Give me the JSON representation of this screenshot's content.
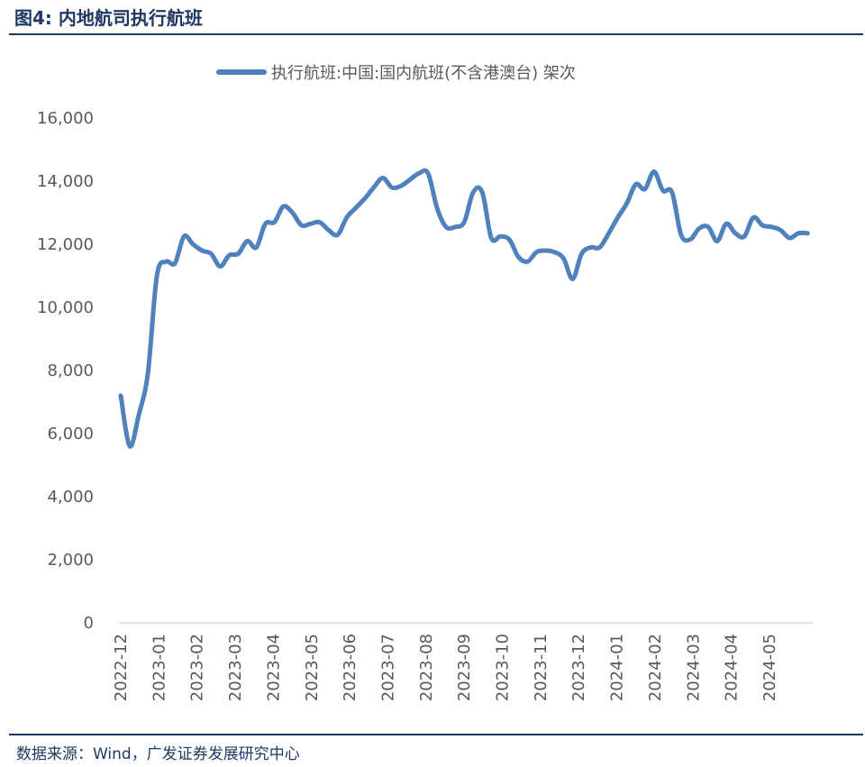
{
  "page": {
    "title": "图4:  内地航司执行航班",
    "source": "数据来源：Wind，广发证券发展研究中心"
  },
  "chart_data": {
    "type": "line",
    "title": "",
    "xlabel": "",
    "ylabel": "",
    "ylim": [
      0,
      16000
    ],
    "yticks": [
      0,
      2000,
      4000,
      6000,
      8000,
      10000,
      12000,
      14000,
      16000
    ],
    "ytick_labels": [
      "0",
      "2,000",
      "4,000",
      "6,000",
      "8,000",
      "10,000",
      "12,000",
      "14,000",
      "16,000"
    ],
    "xticks": [
      "2022-12",
      "2023-01",
      "2023-02",
      "2023-03",
      "2023-04",
      "2023-05",
      "2023-06",
      "2023-07",
      "2023-08",
      "2023-09",
      "2023-10",
      "2023-11",
      "2023-12",
      "2024-01",
      "2024-02",
      "2024-03",
      "2024-04",
      "2024-05"
    ],
    "grid": false,
    "legend_position": "top",
    "series_color": "#4f81bd",
    "series": [
      {
        "name": "执行航班:中国:国内航班(不含港澳台) 架次",
        "x_start": "2022-12-01",
        "x_end": "2024-06-01",
        "values": [
          7200,
          5600,
          6600,
          7900,
          11000,
          11450,
          11400,
          12250,
          12000,
          11800,
          11700,
          11300,
          11650,
          11700,
          12100,
          11900,
          12650,
          12700,
          13200,
          13000,
          12600,
          12650,
          12700,
          12450,
          12300,
          12850,
          13150,
          13450,
          13800,
          14100,
          13800,
          13850,
          14050,
          14250,
          14250,
          13150,
          12550,
          12550,
          12700,
          13650,
          13650,
          12200,
          12250,
          12150,
          11600,
          11450,
          11750,
          11800,
          11750,
          11550,
          10900,
          11700,
          11900,
          11900,
          12350,
          12850,
          13300,
          13900,
          13750,
          14300,
          13700,
          13650,
          12300,
          12150,
          12500,
          12550,
          12100,
          12650,
          12350,
          12250,
          12850,
          12600,
          12550,
          12450,
          12200,
          12350,
          12350
        ]
      }
    ]
  }
}
